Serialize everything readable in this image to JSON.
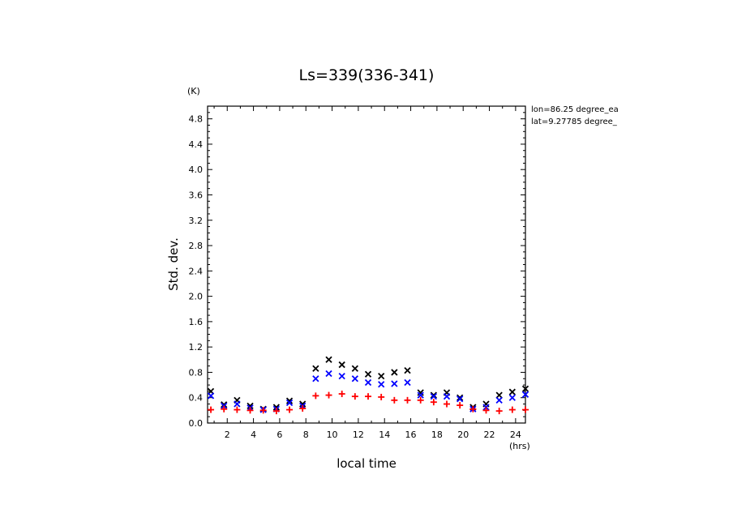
{
  "chart_data": {
    "type": "scatter",
    "title": "Ls=339(336-341)",
    "ylabel": "Std. dev.",
    "yunit": "(K)",
    "xlabel": "local time",
    "xunit": "(hrs)",
    "annotations": [
      "lon=86.25 degree_ea",
      "lat=9.27785 degree_"
    ],
    "xlim": [
      0.5,
      24.75
    ],
    "ylim": [
      0,
      5.0
    ],
    "xticks": [
      2,
      4,
      6,
      8,
      10,
      12,
      14,
      16,
      18,
      20,
      22,
      24
    ],
    "yticks": [
      "0.0",
      "0.4",
      "0.8",
      "1.2",
      "1.6",
      "2.0",
      "2.4",
      "2.8",
      "3.2",
      "3.6",
      "4.0",
      "4.4",
      "4.8"
    ],
    "x": [
      0.75,
      1.75,
      2.75,
      3.75,
      4.75,
      5.75,
      6.75,
      7.75,
      8.75,
      9.75,
      10.75,
      11.75,
      12.75,
      13.75,
      14.75,
      15.75,
      16.75,
      17.75,
      18.75,
      19.75,
      20.75,
      21.75,
      22.75,
      23.75,
      24.75
    ],
    "series": [
      {
        "marker": "x",
        "color": "#000000",
        "values": [
          0.5,
          0.29,
          0.36,
          0.27,
          0.22,
          0.25,
          0.35,
          0.3,
          0.86,
          1.0,
          0.92,
          0.86,
          0.77,
          0.74,
          0.8,
          0.83,
          0.48,
          0.44,
          0.48,
          0.4,
          0.25,
          0.3,
          0.44,
          0.49,
          0.54
        ]
      },
      {
        "marker": "x",
        "color": "#0000ff",
        "values": [
          0.43,
          0.27,
          0.3,
          0.24,
          0.21,
          0.22,
          0.32,
          0.27,
          0.7,
          0.78,
          0.74,
          0.7,
          0.64,
          0.61,
          0.62,
          0.64,
          0.44,
          0.42,
          0.42,
          0.38,
          0.22,
          0.25,
          0.36,
          0.4,
          0.45
        ]
      },
      {
        "marker": "+",
        "color": "#ff0000",
        "values": [
          0.21,
          0.22,
          0.21,
          0.2,
          0.2,
          0.19,
          0.21,
          0.23,
          0.43,
          0.44,
          0.46,
          0.42,
          0.42,
          0.41,
          0.36,
          0.36,
          0.36,
          0.33,
          0.3,
          0.28,
          0.22,
          0.2,
          0.19,
          0.21,
          0.21
        ]
      }
    ],
    "grid": false,
    "legend": "none"
  }
}
